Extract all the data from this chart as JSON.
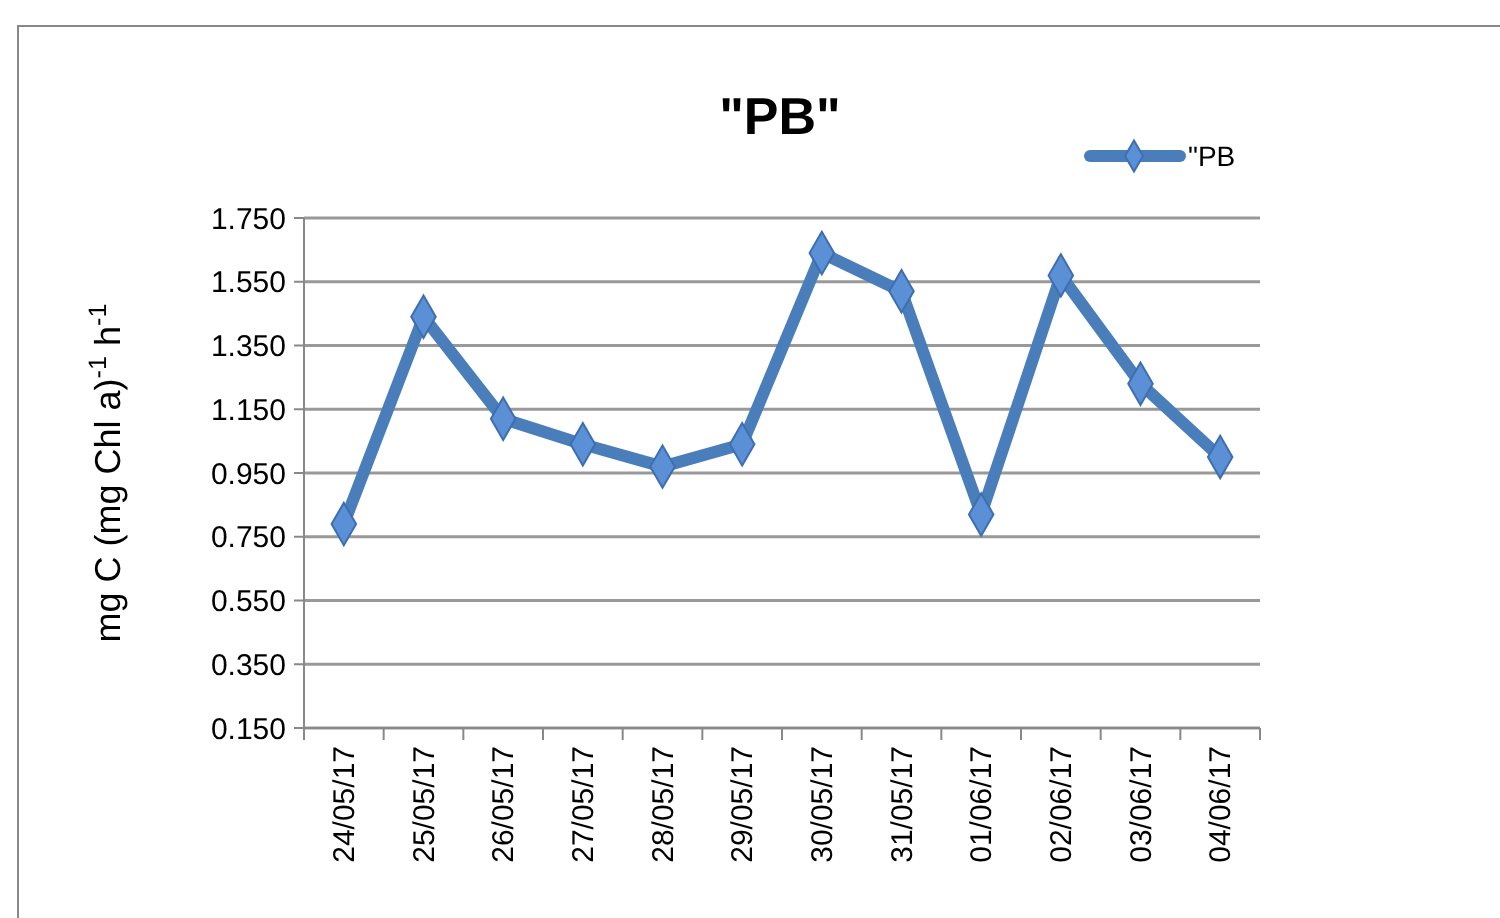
{
  "chart_data": {
    "type": "line",
    "title": "\"PB\"",
    "ylabel": "mg C (mg Chl a)$^{-1}$ h$^{-1}$",
    "categories": [
      "24/05/17",
      "25/05/17",
      "26/05/17",
      "27/05/17",
      "28/05/17",
      "29/05/17",
      "30/05/17",
      "31/05/17",
      "01/06/17",
      "02/06/17",
      "03/06/17",
      "04/06/17"
    ],
    "series": [
      {
        "name": "\"PB",
        "color": "#4a7ebb",
        "values": [
          0.79,
          1.44,
          1.12,
          1.04,
          0.97,
          1.04,
          1.64,
          1.52,
          0.82,
          1.57,
          1.23,
          1.0
        ]
      }
    ],
    "ylim": [
      0.15,
      1.75
    ],
    "yticks": [
      {
        "value": 0.15,
        "label": "0.150"
      },
      {
        "value": 0.35,
        "label": "0.350"
      },
      {
        "value": 0.55,
        "label": "0.550"
      },
      {
        "value": 0.75,
        "label": "0.750"
      },
      {
        "value": 0.95,
        "label": "0.950"
      },
      {
        "value": 1.15,
        "label": "1.150"
      },
      {
        "value": 1.35,
        "label": "1.350"
      },
      {
        "value": 1.55,
        "label": "1.550"
      },
      {
        "value": 1.75,
        "label": "1.750"
      }
    ],
    "grid": "y",
    "legend": "top right",
    "marker": "diamond",
    "line_style": "solid"
  }
}
